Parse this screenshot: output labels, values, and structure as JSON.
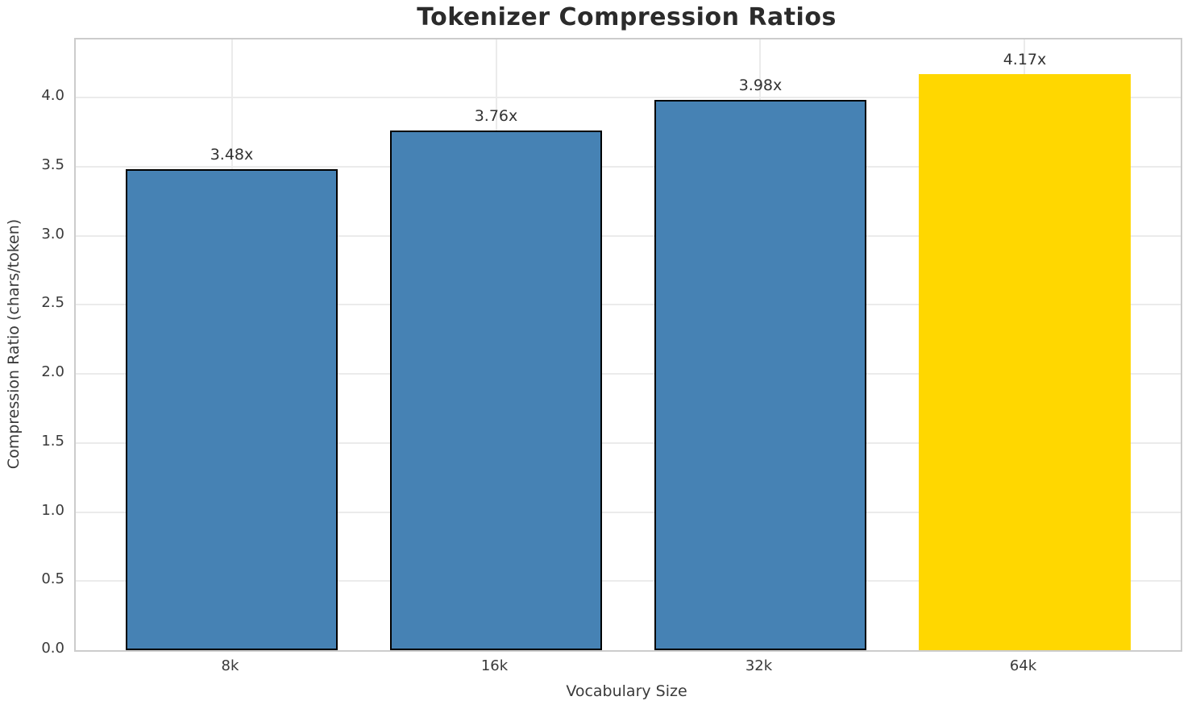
{
  "chart_data": {
    "type": "bar",
    "title": "Tokenizer Compression Ratios",
    "xlabel": "Vocabulary Size",
    "ylabel": "Compression Ratio (chars/token)",
    "categories": [
      "8k",
      "16k",
      "32k",
      "64k"
    ],
    "values": [
      3.48,
      3.76,
      3.98,
      4.17
    ],
    "bar_labels": [
      "3.48x",
      "3.76x",
      "3.98x",
      "4.17x"
    ],
    "bar_colors": [
      "#4682B4",
      "#4682B4",
      "#4682B4",
      "#FFD700"
    ],
    "bar_edge_colors": [
      "#000000",
      "#000000",
      "#000000",
      "#FFD700"
    ],
    "highlight_index": 3,
    "ylim": [
      0,
      4.42
    ],
    "yticks": [
      0.0,
      0.5,
      1.0,
      1.5,
      2.0,
      2.5,
      3.0,
      3.5,
      4.0
    ],
    "ytick_labels": [
      "0.0",
      "0.5",
      "1.0",
      "1.5",
      "2.0",
      "2.5",
      "3.0",
      "3.5",
      "4.0"
    ],
    "grid": true,
    "legend": null,
    "accent_colors": {
      "bar_blue": "#4682B4",
      "bar_gold": "#FFD700",
      "grid": "#ebebeb",
      "spine": "#cccccc",
      "title_text": "#2b2b2b",
      "tick_text": "#3a3a3a"
    }
  }
}
